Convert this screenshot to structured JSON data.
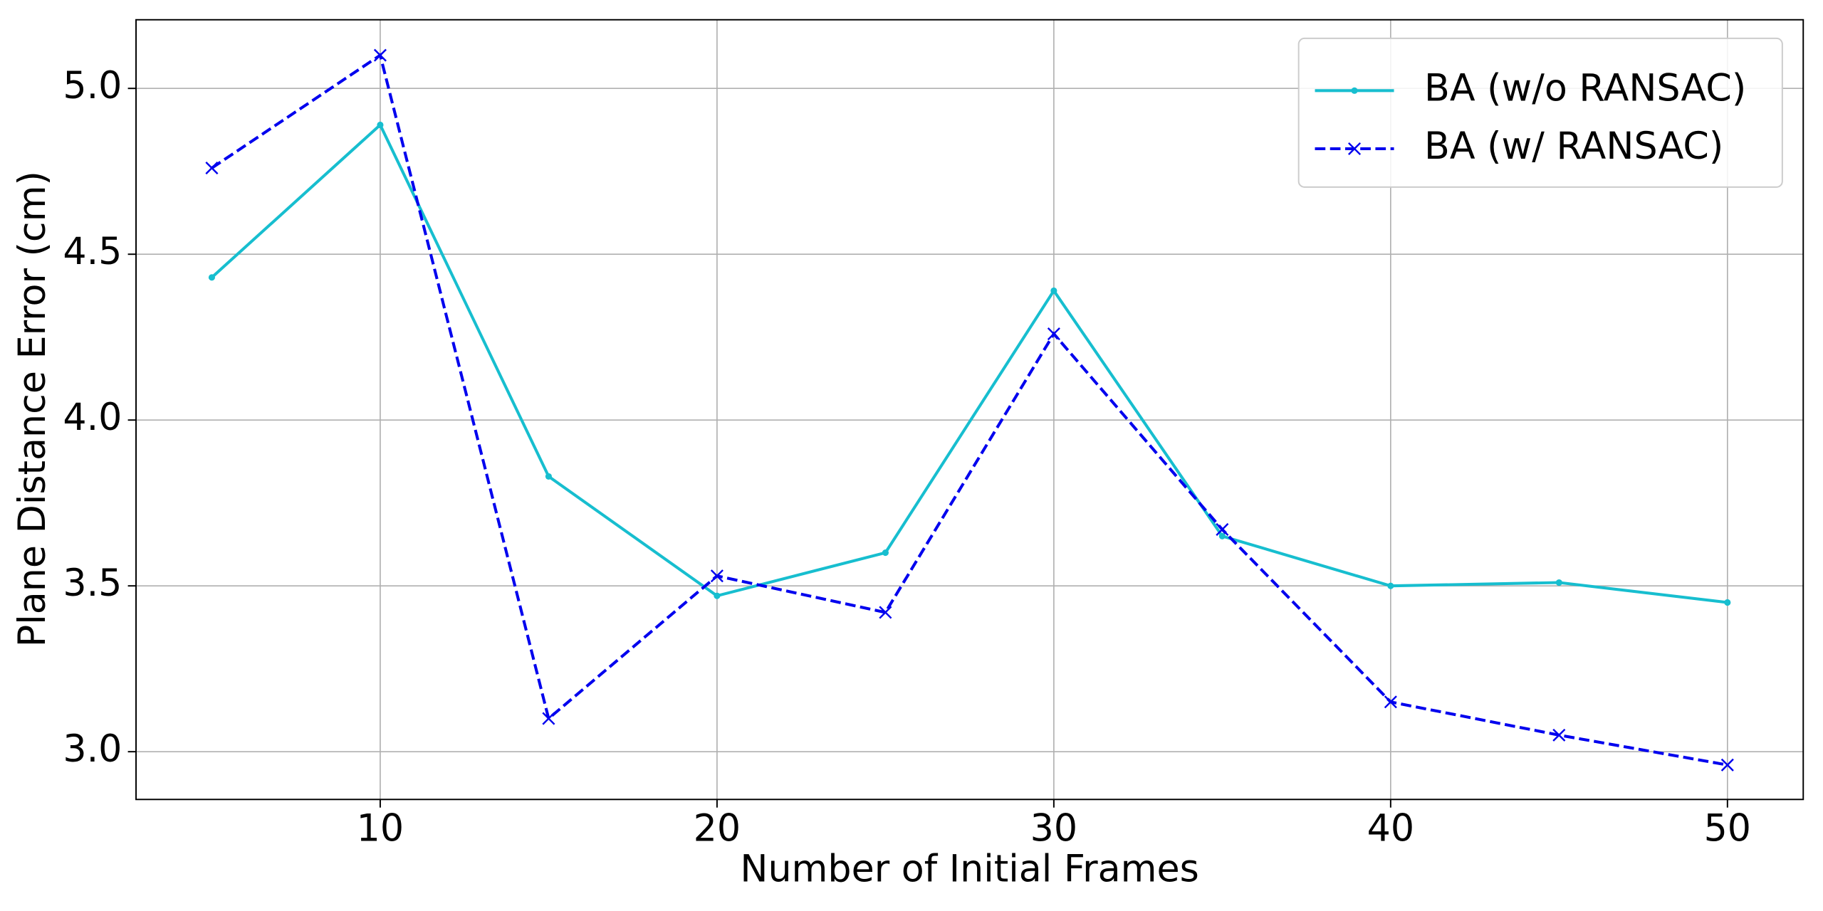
{
  "chart_data": {
    "type": "line",
    "x_label": "Number of Initial Frames",
    "y_label": "Plane Distance Error (cm)",
    "x": [
      5,
      10,
      15,
      20,
      25,
      30,
      35,
      40,
      45,
      50
    ],
    "series": [
      {
        "name": "BA (w/o RANSAC)",
        "color": "#17becf",
        "linestyle": "solid",
        "marker": "dot",
        "values": [
          4.43,
          4.89,
          3.83,
          3.47,
          3.6,
          4.39,
          3.65,
          3.5,
          3.51,
          3.45
        ]
      },
      {
        "name": "BA (w/ RANSAC)",
        "color": "#0000ee",
        "linestyle": "dashed",
        "marker": "x",
        "values": [
          4.76,
          5.1,
          3.1,
          3.53,
          3.42,
          4.26,
          3.67,
          3.15,
          3.05,
          2.96
        ]
      }
    ],
    "xlim": [
      2.75,
      52.25
    ],
    "ylim": [
      2.856,
      5.207
    ],
    "xticks": [
      10,
      20,
      30,
      40,
      50
    ],
    "yticks": [
      {
        "value": 3,
        "label": "3.0"
      },
      3.5,
      {
        "value": 4,
        "label": "4.0"
      },
      4.5,
      {
        "value": 5,
        "label": "5.0"
      }
    ],
    "grid": true,
    "legend": "upper right"
  }
}
